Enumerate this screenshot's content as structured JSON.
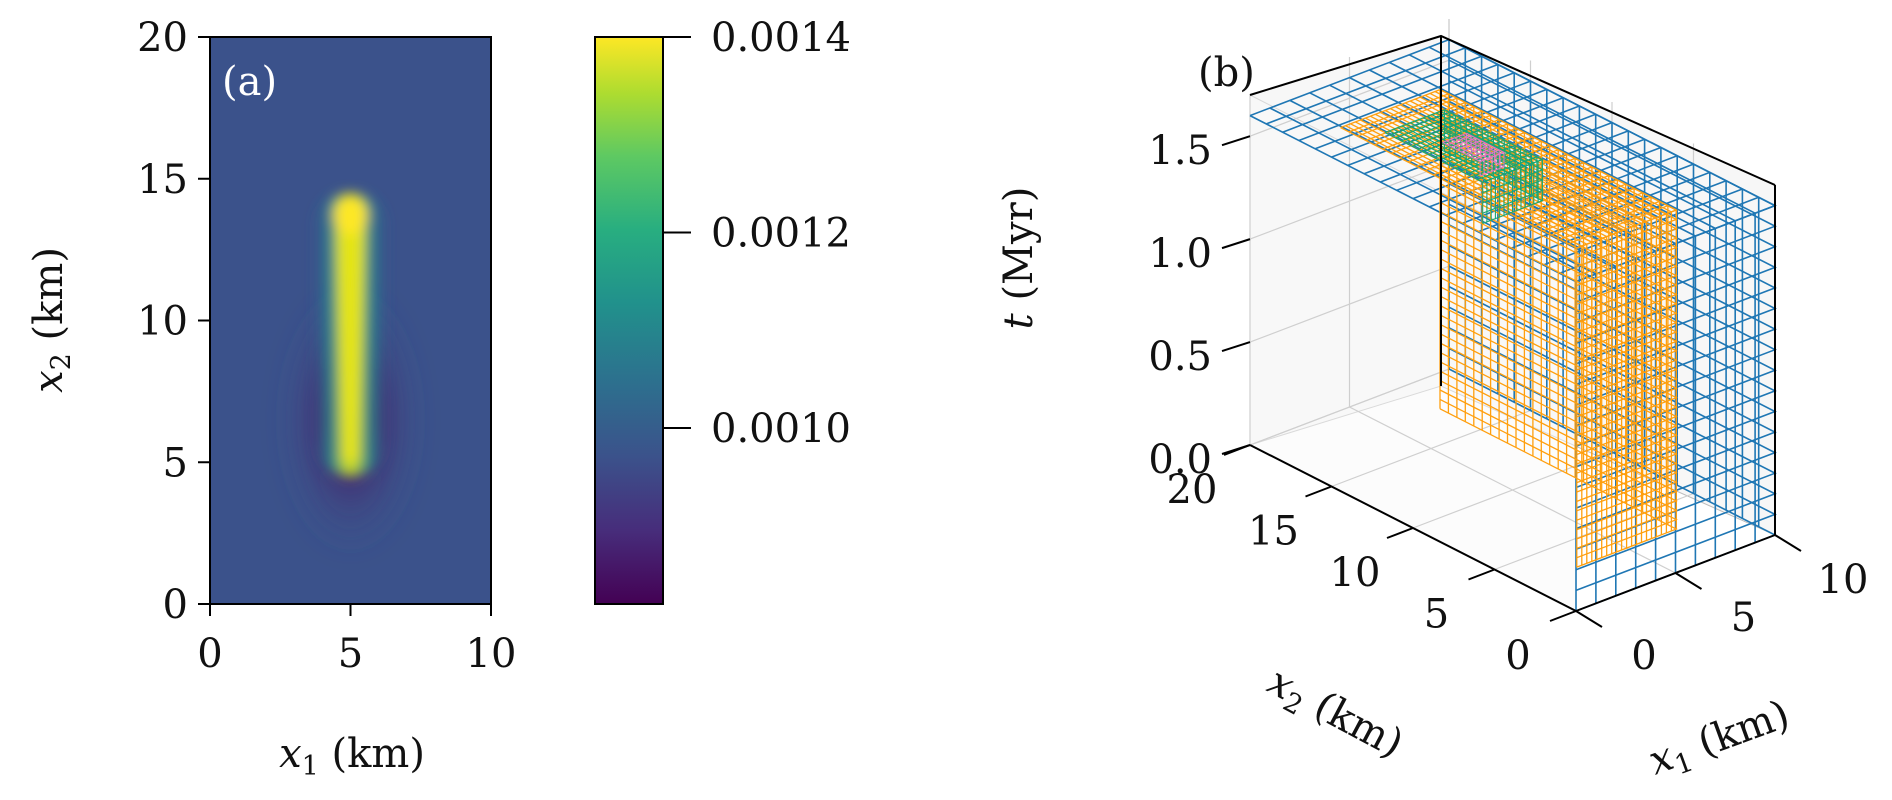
{
  "chart_data": [
    {
      "type": "heatmap",
      "panel_label": "(a)",
      "xlabel_var": "x",
      "xlabel_sub": "1",
      "xlabel_unit": " (km)",
      "ylabel_var": "x",
      "ylabel_sub": "2",
      "ylabel_unit": " (km)",
      "xlim": [
        0,
        10
      ],
      "ylim": [
        0,
        20
      ],
      "x_ticks": [
        0,
        5,
        10
      ],
      "y_ticks": [
        0,
        5,
        10,
        15,
        20
      ],
      "colormap": "viridis",
      "background_value": 0.00099,
      "features": {
        "high_band": {
          "x": 5,
          "y_from": 5,
          "y_to": 14,
          "peak_value": 0.0014
        },
        "low_lobes": {
          "x": 5,
          "y_center": 6.5,
          "min_value": 0.00082
        }
      },
      "colorbar": {
        "vmin": 0.00082,
        "vmax": 0.0014,
        "ticks": [
          0.0014,
          0.0012,
          0.001
        ],
        "tick_labels": [
          "0.0014",
          "0.0012",
          "0.0010"
        ]
      }
    },
    {
      "type": "3d-mesh",
      "panel_label": "(b)",
      "zlabel_var": "t",
      "zlabel_unit": " (Myr)",
      "x1label_var": "x",
      "x1label_sub": "1",
      "x1label_unit": " (km)",
      "x2label_var": "x",
      "x2label_sub": "2",
      "x2label_unit": " (km)",
      "x1_ticks": [
        0,
        5,
        10
      ],
      "x2_ticks": [
        0,
        5,
        10,
        15,
        20
      ],
      "t_ticks": [
        "0.0",
        "0.5",
        "1.0",
        "1.5"
      ],
      "x1_range": [
        0,
        10
      ],
      "x2_range": [
        0,
        20
      ],
      "t_range": [
        0,
        1.7
      ],
      "refinement_levels": [
        {
          "level": 0,
          "color": "#1f77b4"
        },
        {
          "level": 1,
          "color": "#ff9f0e"
        },
        {
          "level": 2,
          "color": "#17a673"
        },
        {
          "level": 3,
          "color": "#e377c2"
        }
      ],
      "grid": true
    }
  ]
}
